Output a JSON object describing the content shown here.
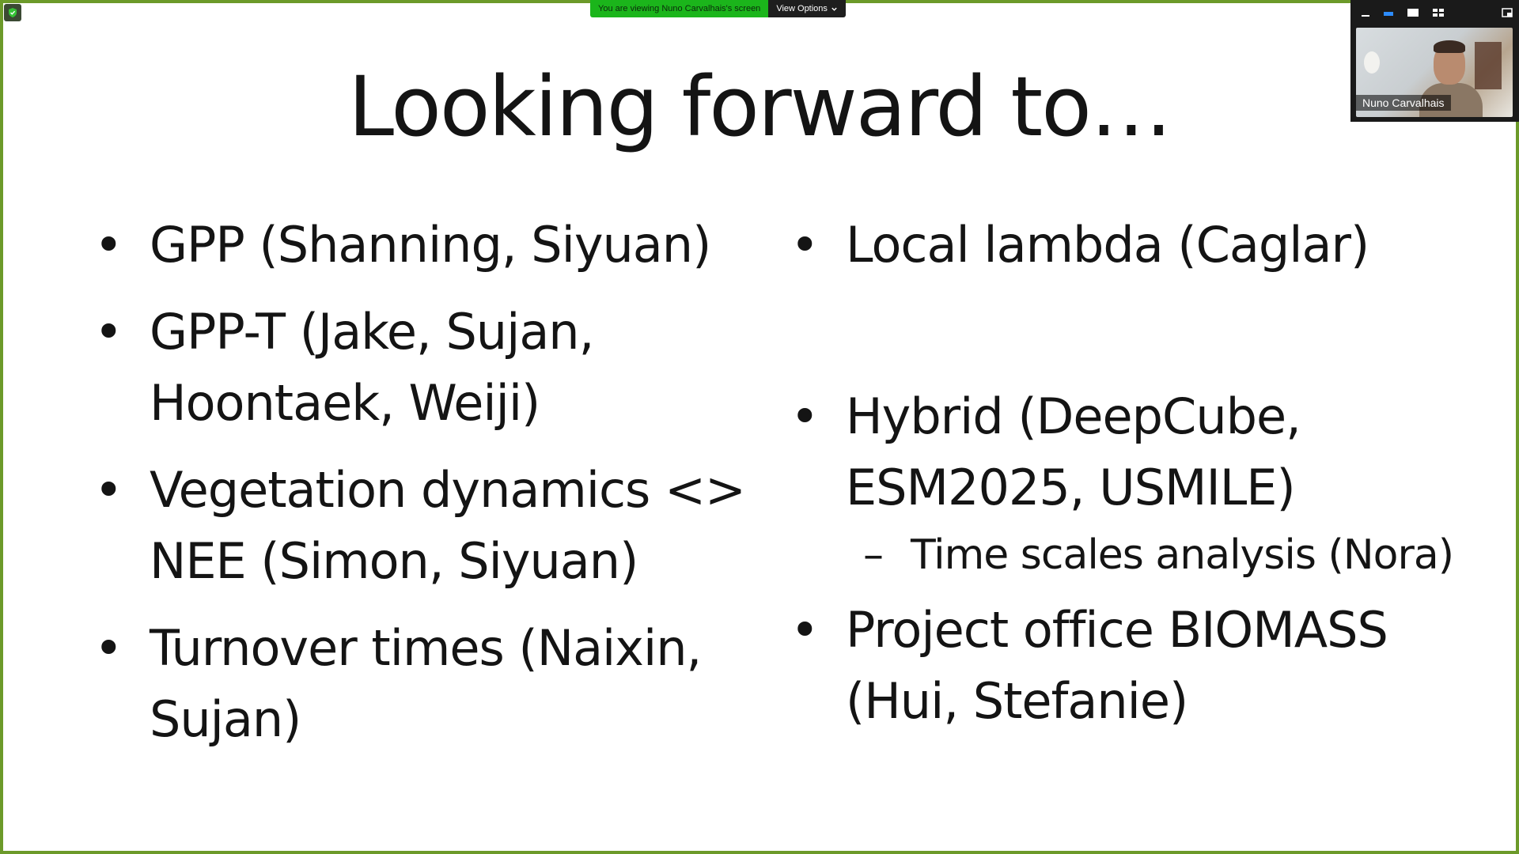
{
  "share_banner": {
    "text": "You are viewing Nuno Carvalhais's screen",
    "view_options_label": "View Options"
  },
  "video": {
    "participant_name": "Nuno Carvalhais"
  },
  "slide": {
    "title": "Looking forward to…",
    "left_column": [
      {
        "bullet": "•",
        "lines": [
          "GPP (Shanning, Siyuan)"
        ]
      },
      {
        "bullet": "•",
        "lines": [
          "GPP-T (Jake, Sujan,",
          "Hoontaek, Weiji)"
        ]
      },
      {
        "bullet": "•",
        "lines": [
          "Vegetation dynamics <>",
          "NEE (Simon, Siyuan)"
        ]
      },
      {
        "bullet": "•",
        "lines": [
          "Turnover times (Naixin,",
          "Sujan)"
        ]
      }
    ],
    "right_column": [
      {
        "bullet": "•",
        "lines": [
          "Local lambda (Caglar)"
        ]
      },
      {
        "bullet": "•",
        "lines": [
          "Hybrid (DeepCube,",
          "ESM2025, USMILE)"
        ]
      },
      {
        "dash": "–",
        "text": "Time scales analysis (Nora)"
      },
      {
        "bullet": "•",
        "lines": [
          "Project office BIOMASS",
          "(Hui, Stefanie)"
        ]
      }
    ]
  },
  "colors": {
    "frame": "#6c9a2a",
    "banner_green": "#1bb51b",
    "banner_dark": "#1e1e1e",
    "text": "#141414"
  }
}
